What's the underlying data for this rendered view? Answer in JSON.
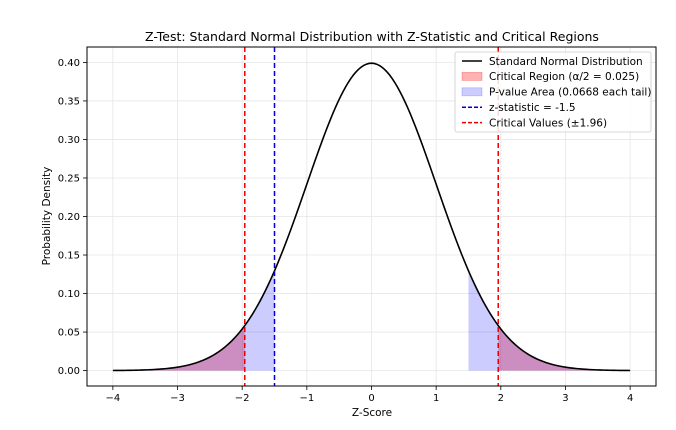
{
  "chart_data": {
    "type": "line",
    "title": "Z-Test: Standard Normal Distribution with Z-Statistic and Critical Regions",
    "xlabel": "Z-Score",
    "ylabel": "Probability Density",
    "xlim": [
      -4.4,
      4.4
    ],
    "ylim": [
      -0.02,
      0.42
    ],
    "grid": true,
    "legend_position": "top-right",
    "xticks": [
      -4,
      -3,
      -2,
      -1,
      0,
      1,
      2,
      3,
      4
    ],
    "xtick_labels": [
      "−4",
      "−3",
      "−2",
      "−1",
      "0",
      "1",
      "2",
      "3",
      "4"
    ],
    "yticks": [
      0.0,
      0.05,
      0.1,
      0.15,
      0.2,
      0.25,
      0.3,
      0.35,
      0.4
    ],
    "ytick_labels": [
      "0.00",
      "0.05",
      "0.10",
      "0.15",
      "0.20",
      "0.25",
      "0.30",
      "0.35",
      "0.40"
    ],
    "curve": {
      "function": "standard_normal_pdf",
      "x_range": [
        -4,
        4
      ],
      "points": 201
    },
    "z_statistic": -1.5,
    "critical_value": 1.96,
    "alpha_half": 0.025,
    "p_value_each_tail": 0.0668,
    "series": [
      {
        "name": "Standard Normal Distribution",
        "kind": "line",
        "color": "#000000",
        "style": "solid"
      },
      {
        "name": "Critical Region (α/2 = 0.025)",
        "kind": "fill",
        "color": "#ff0000",
        "alpha": 0.3,
        "regions": [
          [
            -4,
            -1.96
          ],
          [
            1.96,
            4
          ]
        ]
      },
      {
        "name": "P-value Area (0.0668 each tail)",
        "kind": "fill",
        "color": "#0000ff",
        "alpha": 0.2,
        "regions": [
          [
            -4,
            -1.5
          ],
          [
            1.5,
            4
          ]
        ]
      },
      {
        "name": "z-statistic = -1.5",
        "kind": "vline",
        "x": -1.5,
        "color": "#0000cc",
        "style": "dashed"
      },
      {
        "name": "Critical Values (±1.96)",
        "kind": "vline",
        "x": [
          -1.96,
          1.96
        ],
        "color": "#ee0000",
        "style": "dashed"
      }
    ]
  }
}
